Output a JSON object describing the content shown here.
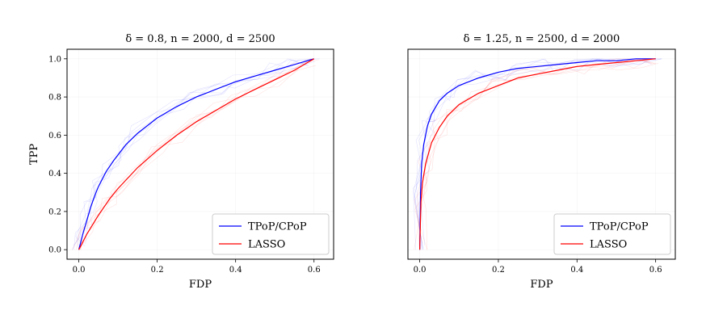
{
  "chart_data": [
    {
      "type": "line",
      "title": "δ = 0.8, n = 2000, d = 2500",
      "xlabel": "FDP",
      "ylabel": "TPP",
      "xlim": [
        -0.03,
        0.65
      ],
      "ylim": [
        -0.05,
        1.05
      ],
      "xticks": [
        "0.0",
        "0.2",
        "0.4",
        "0.6"
      ],
      "yticks": [
        "0.0",
        "0.2",
        "0.4",
        "0.6",
        "0.8",
        "1.0"
      ],
      "show_y_ticks": true,
      "grid": true,
      "legend_position": "bottom-right",
      "series": [
        {
          "name": "TPoP/CPoP",
          "color": "#0000ff",
          "x": [
            0.0,
            0.01,
            0.02,
            0.03,
            0.04,
            0.05,
            0.07,
            0.09,
            0.12,
            0.15,
            0.2,
            0.25,
            0.3,
            0.35,
            0.4,
            0.45,
            0.5,
            0.55,
            0.6
          ],
          "y": [
            0.0,
            0.08,
            0.15,
            0.22,
            0.28,
            0.33,
            0.41,
            0.47,
            0.55,
            0.61,
            0.69,
            0.75,
            0.8,
            0.84,
            0.88,
            0.91,
            0.94,
            0.97,
            1.0
          ]
        },
        {
          "name": "LASSO",
          "color": "#ff0000",
          "x": [
            0.0,
            0.02,
            0.05,
            0.08,
            0.1,
            0.15,
            0.2,
            0.25,
            0.3,
            0.35,
            0.4,
            0.45,
            0.5,
            0.55,
            0.6
          ],
          "y": [
            0.0,
            0.08,
            0.18,
            0.27,
            0.32,
            0.43,
            0.52,
            0.6,
            0.67,
            0.73,
            0.79,
            0.84,
            0.89,
            0.94,
            1.0
          ]
        }
      ]
    },
    {
      "type": "line",
      "title": "δ = 1.25, n = 2500, d = 2000",
      "xlabel": "FDP",
      "ylabel": "",
      "xlim": [
        -0.03,
        0.65
      ],
      "ylim": [
        -0.05,
        1.05
      ],
      "xticks": [
        "0.0",
        "0.2",
        "0.4",
        "0.6"
      ],
      "yticks": [],
      "show_y_ticks": false,
      "grid": true,
      "legend_position": "bottom-right",
      "series": [
        {
          "name": "TPoP/CPoP",
          "color": "#0000ff",
          "x": [
            0.0,
            0.002,
            0.005,
            0.01,
            0.02,
            0.03,
            0.05,
            0.07,
            0.1,
            0.15,
            0.2,
            0.25,
            0.3,
            0.35,
            0.4,
            0.45,
            0.5,
            0.55,
            0.6
          ],
          "y": [
            0.0,
            0.3,
            0.45,
            0.55,
            0.65,
            0.71,
            0.78,
            0.82,
            0.86,
            0.9,
            0.93,
            0.95,
            0.96,
            0.97,
            0.98,
            0.99,
            0.99,
            1.0,
            1.0
          ]
        },
        {
          "name": "LASSO",
          "color": "#ff0000",
          "x": [
            0.0,
            0.003,
            0.007,
            0.015,
            0.03,
            0.05,
            0.07,
            0.1,
            0.15,
            0.2,
            0.25,
            0.3,
            0.35,
            0.4,
            0.45,
            0.5,
            0.55,
            0.6
          ],
          "y": [
            0.0,
            0.25,
            0.35,
            0.45,
            0.56,
            0.64,
            0.7,
            0.76,
            0.82,
            0.86,
            0.9,
            0.92,
            0.94,
            0.96,
            0.97,
            0.98,
            0.99,
            1.0
          ]
        }
      ]
    }
  ]
}
